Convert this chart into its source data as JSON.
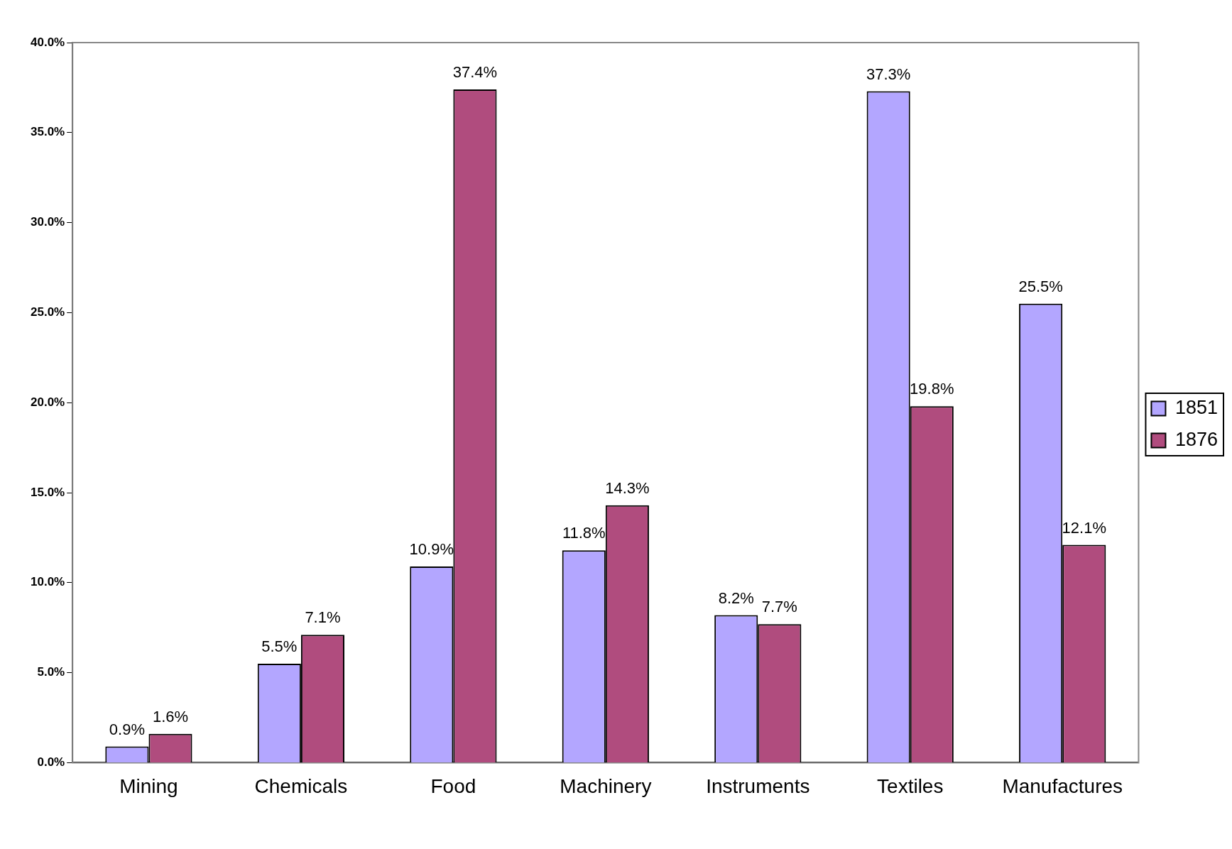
{
  "chart_data": {
    "type": "bar",
    "categories": [
      "Mining",
      "Chemicals",
      "Food",
      "Machinery",
      "Instruments",
      "Textiles",
      "Manufactures"
    ],
    "series": [
      {
        "name": "1851",
        "color": "#b3a6ff",
        "values": [
          0.9,
          5.5,
          10.9,
          11.8,
          8.2,
          37.3,
          25.5
        ],
        "value_labels": [
          "0.9%",
          "5.5%",
          "10.9%",
          "11.8%",
          "8.2%",
          "37.3%",
          "25.5%"
        ]
      },
      {
        "name": "1876",
        "color": "#b04c7e",
        "values": [
          1.6,
          7.1,
          37.4,
          14.3,
          7.7,
          19.8,
          12.1
        ],
        "value_labels": [
          "1.6%",
          "7.1%",
          "37.4%",
          "14.3%",
          "7.7%",
          "19.8%",
          "12.1%"
        ]
      }
    ],
    "ylim": [
      0,
      40
    ],
    "yticks": [
      {
        "value": 0,
        "label": "0.0%"
      },
      {
        "value": 5,
        "label": "5.0%"
      },
      {
        "value": 10,
        "label": "10.0%"
      },
      {
        "value": 15,
        "label": "15.0%"
      },
      {
        "value": 20,
        "label": "20.0%"
      },
      {
        "value": 25,
        "label": "25.0%"
      },
      {
        "value": 30,
        "label": "30.0%"
      },
      {
        "value": 35,
        "label": "35.0%"
      },
      {
        "value": 40,
        "label": "40.0%"
      }
    ],
    "grid": false,
    "legend": "right"
  }
}
